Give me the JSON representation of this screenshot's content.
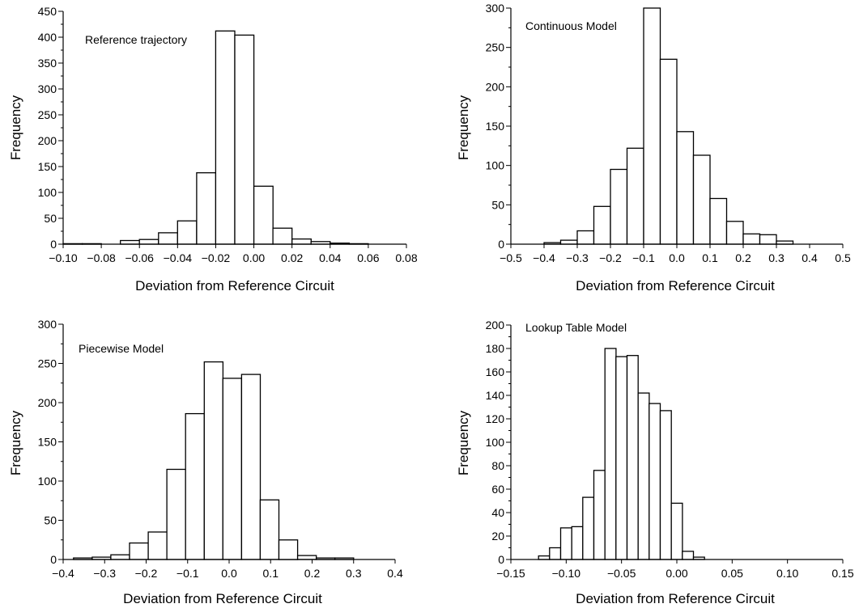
{
  "chart_data": [
    {
      "type": "bar",
      "annotation": "Reference trajectory",
      "xlabel": "Deviation from Reference Circuit",
      "ylabel": "Frequency",
      "xlim": [
        -0.1,
        0.08
      ],
      "ylim": [
        0,
        450
      ],
      "xticks": [
        -0.1,
        -0.08,
        -0.06,
        -0.04,
        -0.02,
        0.0,
        0.02,
        0.04,
        0.06,
        0.08
      ],
      "xtick_labels": [
        "−0.10",
        "−0.08",
        "−0.06",
        "−0.04",
        "−0.02",
        "0.00",
        "0.02",
        "0.04",
        "0.06",
        "0.08"
      ],
      "yticks": [
        0,
        50,
        100,
        150,
        200,
        250,
        300,
        350,
        400,
        450
      ],
      "ytick_labels": [
        "0",
        "50",
        "100",
        "150",
        "200",
        "250",
        "300",
        "350",
        "400",
        "450"
      ],
      "bin_edges": [
        -0.1,
        -0.09,
        -0.08,
        -0.07,
        -0.06,
        -0.05,
        -0.04,
        -0.03,
        -0.02,
        -0.01,
        0.0,
        0.01,
        0.02,
        0.03,
        0.04,
        0.05,
        0.06,
        0.07
      ],
      "values": [
        1,
        1,
        0,
        7,
        9,
        22,
        45,
        138,
        412,
        404,
        112,
        31,
        10,
        5,
        2,
        1,
        0
      ]
    },
    {
      "type": "bar",
      "annotation": "Continuous Model",
      "xlabel": "Deviation from Reference Circuit",
      "ylabel": "Frequency",
      "xlim": [
        -0.5,
        0.5
      ],
      "ylim": [
        0,
        300
      ],
      "xticks": [
        -0.5,
        -0.4,
        -0.3,
        -0.2,
        -0.1,
        0.0,
        0.1,
        0.2,
        0.3,
        0.4,
        0.5
      ],
      "xtick_labels": [
        "−0.5",
        "−0.4",
        "−0.3",
        "−0.2",
        "−0.1",
        "0.0",
        "0.1",
        "0.2",
        "0.3",
        "0.4",
        "0.5"
      ],
      "yticks": [
        0,
        50,
        100,
        150,
        200,
        250,
        300
      ],
      "ytick_labels": [
        "0",
        "50",
        "100",
        "150",
        "200",
        "250",
        "300"
      ],
      "bin_edges": [
        -0.4,
        -0.35,
        -0.3,
        -0.25,
        -0.2,
        -0.15,
        -0.1,
        -0.05,
        0.0,
        0.05,
        0.1,
        0.15,
        0.2,
        0.25,
        0.3,
        0.35,
        0.4,
        0.45
      ],
      "values": [
        2,
        5,
        17,
        48,
        95,
        122,
        300,
        235,
        143,
        113,
        58,
        29,
        13,
        12,
        4,
        0,
        0
      ]
    },
    {
      "type": "bar",
      "annotation": "Piecewise Model",
      "xlabel": "Deviation from Reference Circuit",
      "ylabel": "Frequency",
      "xlim": [
        -0.4,
        0.4
      ],
      "ylim": [
        0,
        300
      ],
      "xticks": [
        -0.4,
        -0.3,
        -0.2,
        -0.1,
        0.0,
        0.1,
        0.2,
        0.3,
        0.4
      ],
      "xtick_labels": [
        "−0.4",
        "−0.3",
        "−0.2",
        "−0.1",
        "0.0",
        "0.1",
        "0.2",
        "0.3",
        "0.4"
      ],
      "yticks": [
        0,
        50,
        100,
        150,
        200,
        250,
        300
      ],
      "ytick_labels": [
        "0",
        "50",
        "100",
        "150",
        "200",
        "250",
        "300"
      ],
      "bin_edges": [
        -0.375,
        -0.33,
        -0.285,
        -0.24,
        -0.195,
        -0.15,
        -0.105,
        -0.06,
        -0.015,
        0.03,
        0.075,
        0.12,
        0.165,
        0.21,
        0.255,
        0.3,
        0.345
      ],
      "values": [
        2,
        3,
        6,
        21,
        35,
        115,
        186,
        252,
        231,
        236,
        76,
        25,
        5,
        2,
        2,
        0
      ]
    },
    {
      "type": "bar",
      "annotation": "Lookup Table Model",
      "xlabel": "Deviation from Reference Circuit",
      "ylabel": "Frequency",
      "xlim": [
        -0.15,
        0.15
      ],
      "ylim": [
        0,
        200
      ],
      "xticks": [
        -0.15,
        -0.1,
        -0.05,
        0.0,
        0.05,
        0.1,
        0.15
      ],
      "xtick_labels": [
        "−0.15",
        "−0.10",
        "−0.05",
        "0.00",
        "0.05",
        "0.10",
        "0.15"
      ],
      "yticks": [
        0,
        20,
        40,
        60,
        80,
        100,
        120,
        140,
        160,
        180,
        200
      ],
      "ytick_labels": [
        "0",
        "20",
        "40",
        "60",
        "80",
        "100",
        "120",
        "140",
        "160",
        "180",
        "200"
      ],
      "bin_edges": [
        -0.135,
        -0.125,
        -0.115,
        -0.105,
        -0.095,
        -0.085,
        -0.075,
        -0.065,
        -0.055,
        -0.045,
        -0.035,
        -0.025,
        -0.015,
        -0.005,
        0.005,
        0.015,
        0.025,
        0.035,
        0.045,
        0.055,
        0.065,
        0.075,
        0.085,
        0.095,
        0.105,
        0.115
      ],
      "values": [
        0,
        3,
        10,
        27,
        28,
        53,
        76,
        180,
        173,
        174,
        142,
        133,
        127,
        48,
        7,
        2,
        0,
        0,
        0,
        0,
        0,
        0,
        0,
        0,
        0
      ]
    }
  ]
}
